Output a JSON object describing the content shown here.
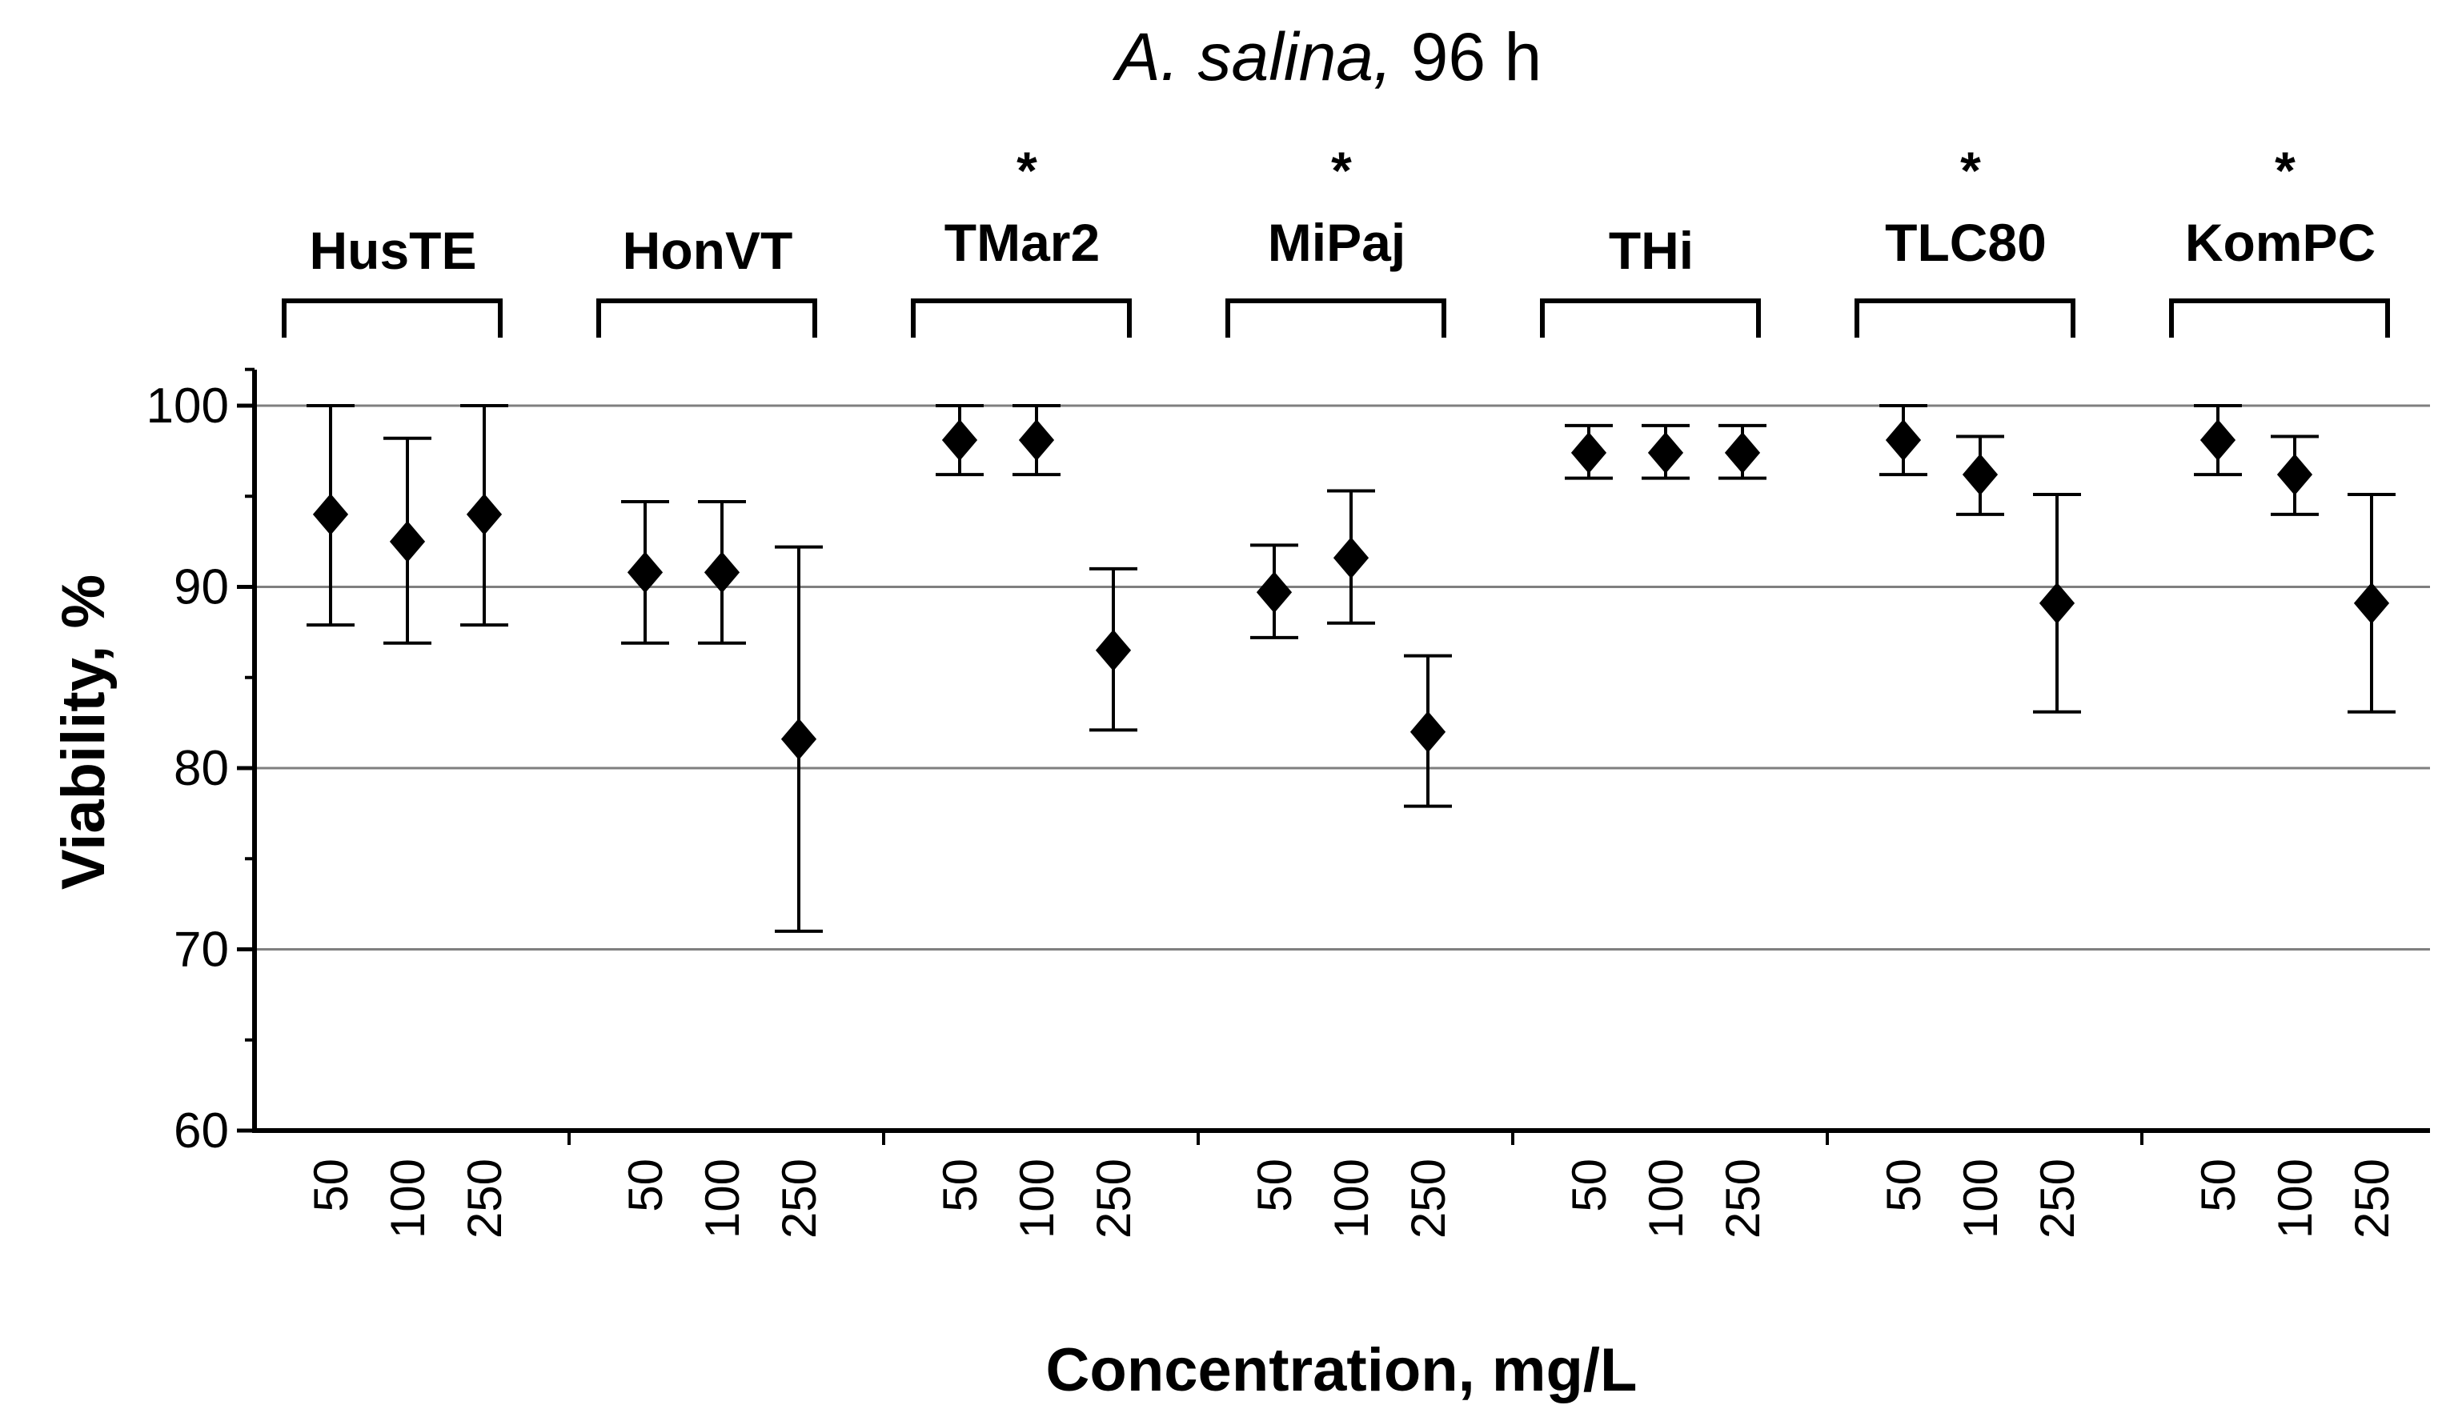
{
  "chart_data": {
    "type": "scatter",
    "title_italic": "A. salina,",
    "title_rest": " 96 h",
    "xlabel": "Concentration, mg/L",
    "ylabel": "Viability, %",
    "ylim": [
      60,
      102
    ],
    "yticks": [
      60,
      70,
      80,
      90,
      100
    ],
    "ytick_labels": [
      "60",
      "70",
      "80",
      "90",
      "100"
    ],
    "gridlines": [
      70,
      80,
      90,
      100
    ],
    "concentrations": [
      "50",
      "100",
      "250"
    ],
    "significance_marker": "*",
    "groups": [
      {
        "name": "HusTE",
        "significant": false,
        "points": [
          {
            "conc": "50",
            "mean": 94.0,
            "low": 87.9,
            "high": 100.0
          },
          {
            "conc": "100",
            "mean": 92.5,
            "low": 86.9,
            "high": 98.2
          },
          {
            "conc": "250",
            "mean": 94.0,
            "low": 87.9,
            "high": 100.0
          }
        ]
      },
      {
        "name": "HonVT",
        "significant": false,
        "points": [
          {
            "conc": "50",
            "mean": 90.8,
            "low": 86.9,
            "high": 94.7
          },
          {
            "conc": "100",
            "mean": 90.8,
            "low": 86.9,
            "high": 94.7
          },
          {
            "conc": "250",
            "mean": 81.6,
            "low": 71.0,
            "high": 92.2
          }
        ]
      },
      {
        "name": "TMar2",
        "significant": true,
        "points": [
          {
            "conc": "50",
            "mean": 98.1,
            "low": 96.2,
            "high": 100.0
          },
          {
            "conc": "100",
            "mean": 98.1,
            "low": 96.2,
            "high": 100.0
          },
          {
            "conc": "250",
            "mean": 86.5,
            "low": 82.1,
            "high": 91.0
          }
        ]
      },
      {
        "name": "MiPaj",
        "significant": true,
        "points": [
          {
            "conc": "50",
            "mean": 89.7,
            "low": 87.2,
            "high": 92.3
          },
          {
            "conc": "100",
            "mean": 91.6,
            "low": 88.0,
            "high": 95.3
          },
          {
            "conc": "250",
            "mean": 82.0,
            "low": 77.9,
            "high": 86.2
          }
        ]
      },
      {
        "name": "THi",
        "significant": false,
        "points": [
          {
            "conc": "50",
            "mean": 97.4,
            "low": 96.0,
            "high": 98.9
          },
          {
            "conc": "100",
            "mean": 97.4,
            "low": 96.0,
            "high": 98.9
          },
          {
            "conc": "250",
            "mean": 97.4,
            "low": 96.0,
            "high": 98.9
          }
        ]
      },
      {
        "name": "TLC80",
        "significant": true,
        "points": [
          {
            "conc": "50",
            "mean": 98.1,
            "low": 96.2,
            "high": 100.0
          },
          {
            "conc": "100",
            "mean": 96.2,
            "low": 94.0,
            "high": 98.3
          },
          {
            "conc": "250",
            "mean": 89.1,
            "low": 83.1,
            "high": 95.1
          }
        ]
      },
      {
        "name": "KomPC",
        "significant": true,
        "points": [
          {
            "conc": "50",
            "mean": 98.1,
            "low": 96.2,
            "high": 100.0
          },
          {
            "conc": "100",
            "mean": 96.2,
            "low": 94.0,
            "high": 98.3
          },
          {
            "conc": "250",
            "mean": 89.1,
            "low": 83.1,
            "high": 95.1
          }
        ]
      }
    ]
  }
}
